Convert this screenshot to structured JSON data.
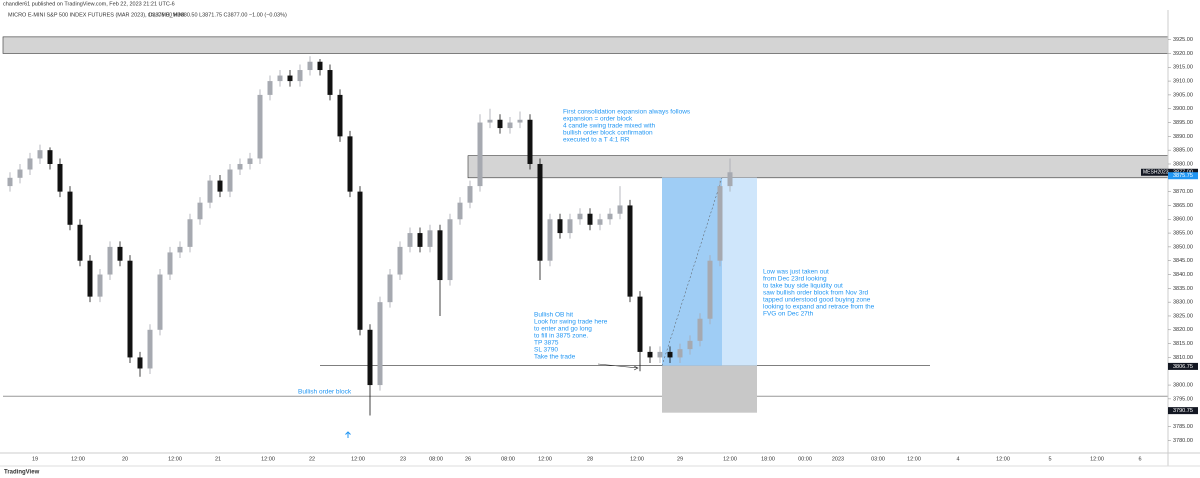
{
  "header": "chandler61 published on TradingView.com, Feb 22, 2023 21:21 UTC-6",
  "chart_data": {
    "type": "candlestick",
    "legend": "MICRO E-MINI S&P 500 INDEX FUTURES (MAR 2023), 1h, CME_MINI",
    "ohlc_text": "O3876.00 H3880.50 L3871.75 C3877.00 −1.00 (−0.03%)",
    "up_color": "#a6a9b0",
    "down_color": "#111111",
    "ylim": [
      3776.5,
      3935
    ],
    "yticks": [
      {
        "value": 3925,
        "label": "3925.00"
      },
      {
        "value": 3920,
        "label": "3920.00"
      },
      {
        "value": 3915,
        "label": "3915.00"
      },
      {
        "value": 3910,
        "label": "3910.00"
      },
      {
        "value": 3905,
        "label": "3905.00"
      },
      {
        "value": 3900,
        "label": "3900.00"
      },
      {
        "value": 3895,
        "label": "3895.00"
      },
      {
        "value": 3890,
        "label": "3890.00"
      },
      {
        "value": 3885,
        "label": "3885.00"
      },
      {
        "value": 3880,
        "label": "3880.00"
      },
      {
        "value": 3870,
        "label": "3870.00"
      },
      {
        "value": 3865,
        "label": "3865.00"
      },
      {
        "value": 3860,
        "label": "3860.00"
      },
      {
        "value": 3855,
        "label": "3855.00"
      },
      {
        "value": 3850,
        "label": "3850.00"
      },
      {
        "value": 3845,
        "label": "3845.00"
      },
      {
        "value": 3840,
        "label": "3840.00"
      },
      {
        "value": 3835,
        "label": "3835.00"
      },
      {
        "value": 3830,
        "label": "3830.00"
      },
      {
        "value": 3825,
        "label": "3825.00"
      },
      {
        "value": 3820,
        "label": "3820.00"
      },
      {
        "value": 3815,
        "label": "3815.00"
      },
      {
        "value": 3810,
        "label": "3810.00"
      },
      {
        "value": 3800,
        "label": "3800.00"
      },
      {
        "value": 3795,
        "label": "3795.00"
      },
      {
        "value": 3785,
        "label": "3785.00"
      },
      {
        "value": 3780,
        "label": "3780.00"
      }
    ],
    "xlabels": [
      "19",
      "12:00",
      "20",
      "12:00",
      "21",
      "12:00",
      "22",
      "12:00",
      "23",
      "08:00",
      "26",
      "08:00",
      "12:00",
      "28",
      "12:00",
      "29",
      "12:00",
      "18:00",
      "00:00",
      "2023",
      "03:00",
      "12:00",
      "4",
      "12:00",
      "5",
      "12:00",
      "6"
    ],
    "candles": [
      [
        3872,
        3877,
        3870,
        3875
      ],
      [
        3875,
        3880,
        3873,
        3878
      ],
      [
        3878,
        3884,
        3876,
        3882
      ],
      [
        3882,
        3887,
        3880,
        3885
      ],
      [
        3885,
        3886,
        3878,
        3880
      ],
      [
        3880,
        3882,
        3868,
        3870
      ],
      [
        3870,
        3872,
        3856,
        3858
      ],
      [
        3858,
        3860,
        3843,
        3845
      ],
      [
        3845,
        3847,
        3830,
        3832
      ],
      [
        3832,
        3842,
        3830,
        3840
      ],
      [
        3840,
        3852,
        3838,
        3850
      ],
      [
        3850,
        3852,
        3843,
        3845
      ],
      [
        3845,
        3847,
        3808,
        3810
      ],
      [
        3810,
        3812,
        3803,
        3806
      ],
      [
        3806,
        3822,
        3804,
        3820
      ],
      [
        3820,
        3842,
        3818,
        3840
      ],
      [
        3840,
        3850,
        3838,
        3848
      ],
      [
        3848,
        3852,
        3846,
        3850
      ],
      [
        3850,
        3862,
        3848,
        3860
      ],
      [
        3860,
        3868,
        3858,
        3866
      ],
      [
        3866,
        3876,
        3864,
        3874
      ],
      [
        3874,
        3876,
        3868,
        3870
      ],
      [
        3870,
        3880,
        3868,
        3878
      ],
      [
        3878,
        3882,
        3876,
        3880
      ],
      [
        3880,
        3884,
        3878,
        3882
      ],
      [
        3882,
        3907,
        3880,
        3905
      ],
      [
        3905,
        3912,
        3903,
        3910
      ],
      [
        3910,
        3914,
        3908,
        3912
      ],
      [
        3912,
        3914,
        3908,
        3910
      ],
      [
        3910,
        3916,
        3908,
        3914
      ],
      [
        3914,
        3919,
        3912,
        3917
      ],
      [
        3917,
        3918,
        3912,
        3914
      ],
      [
        3914,
        3916,
        3903,
        3905
      ],
      [
        3905,
        3907,
        3888,
        3890
      ],
      [
        3890,
        3892,
        3868,
        3870
      ],
      [
        3870,
        3872,
        3818,
        3820
      ],
      [
        3820,
        3822,
        3789,
        3800
      ],
      [
        3800,
        3832,
        3798,
        3830
      ],
      [
        3830,
        3842,
        3828,
        3840
      ],
      [
        3840,
        3852,
        3838,
        3850
      ],
      [
        3850,
        3857,
        3848,
        3855
      ],
      [
        3855,
        3857,
        3848,
        3850
      ],
      [
        3850,
        3858,
        3848,
        3856
      ],
      [
        3856,
        3858,
        3825,
        3838
      ],
      [
        3838,
        3862,
        3836,
        3860
      ],
      [
        3860,
        3868,
        3858,
        3866
      ],
      [
        3866,
        3874,
        3864,
        3872
      ],
      [
        3872,
        3898,
        3870,
        3895
      ],
      [
        3895,
        3900,
        3893,
        3896
      ],
      [
        3896,
        3898,
        3891,
        3893
      ],
      [
        3893,
        3897,
        3891,
        3895
      ],
      [
        3895,
        3899,
        3893,
        3896
      ],
      [
        3896,
        3898,
        3878,
        3880
      ],
      [
        3880,
        3882,
        3838,
        3845
      ],
      [
        3845,
        3862,
        3843,
        3860
      ],
      [
        3860,
        3862,
        3853,
        3855
      ],
      [
        3855,
        3862,
        3853,
        3860
      ],
      [
        3860,
        3864,
        3858,
        3862
      ],
      [
        3862,
        3864,
        3856,
        3858
      ],
      [
        3858,
        3862,
        3856,
        3860
      ],
      [
        3860,
        3864,
        3858,
        3862
      ],
      [
        3862,
        3872,
        3860,
        3865
      ],
      [
        3865,
        3867,
        3830,
        3832
      ],
      [
        3832,
        3834,
        3805,
        3812
      ],
      [
        3812,
        3814,
        3808,
        3810
      ],
      [
        3810,
        3814,
        3808,
        3812
      ],
      [
        3812,
        3814,
        3808,
        3810
      ],
      [
        3810,
        3815,
        3808,
        3813
      ],
      [
        3813,
        3818,
        3811,
        3816
      ],
      [
        3816,
        3826,
        3814,
        3824
      ],
      [
        3824,
        3847,
        3822,
        3845
      ],
      [
        3845,
        3874,
        3843,
        3872
      ],
      [
        3872,
        3882,
        3870,
        3877
      ]
    ],
    "zones": [
      [
        3920,
        3926
      ],
      [
        3875,
        3883
      ]
    ],
    "levels": [
      3807,
      3796
    ],
    "position": {
      "entry": 3807,
      "target": 3875,
      "stop": 3790
    },
    "price_tags": [
      {
        "value": 3877,
        "label": "3877.00"
      },
      {
        "value": 3875.75,
        "label": "3875.75"
      },
      {
        "value": 3806.75,
        "label": "3806.75"
      },
      {
        "value": 3790.75,
        "label": "3790.75"
      }
    ],
    "symbol_tag": "MESH2023",
    "annotations": [
      [
        "First consolidation expansion always follows",
        "expansion = order block",
        "4 candle swing trade mixed with",
        "bullish order block confirmation",
        "executed to a T 4:1 RR"
      ],
      [
        "Low was just taken out",
        "from Dec 23rd looking",
        "to take buy side liquidity out",
        "saw bullish order block from Nov 3rd",
        "tapped understood good buying zone",
        "looking to expand and retrace from the",
        "FVG on Dec 27th"
      ],
      [
        "Bullish OB hit",
        "Look for swing trade here",
        "to enter and go long",
        "to fill in 3875 zone.",
        "TP 3875",
        "SL 3790",
        "Take the trade"
      ],
      [
        "Bullish order block"
      ]
    ],
    "brand": "TradingView"
  }
}
